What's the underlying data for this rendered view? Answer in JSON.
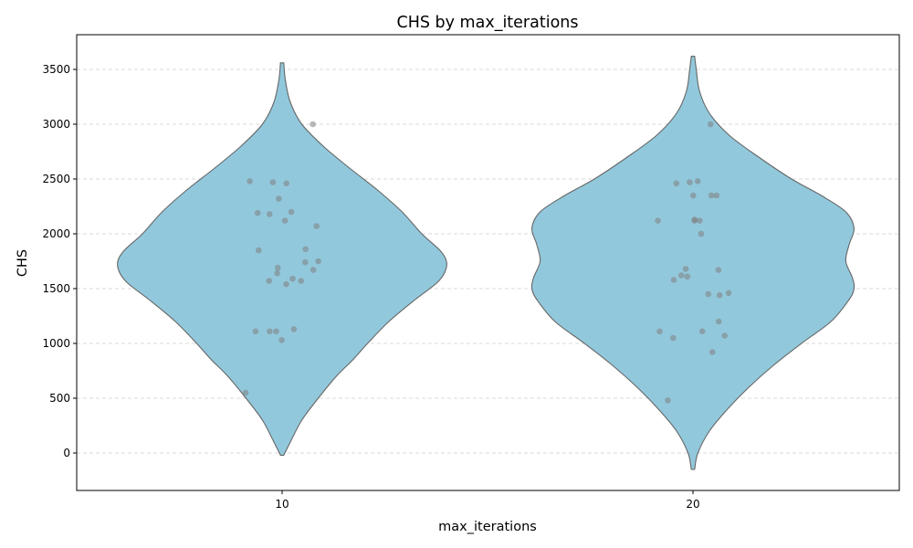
{
  "chart_data": {
    "type": "violin",
    "title": "CHS by max_iterations",
    "xlabel": "max_iterations",
    "ylabel": "CHS",
    "categories": [
      "10",
      "20"
    ],
    "ylim": [
      -340,
      3820
    ],
    "yticks": [
      0,
      500,
      1000,
      1500,
      2000,
      2500,
      3000,
      3500
    ],
    "grid": "y-dashed",
    "colors": {
      "violin_fill": "#92c8dc",
      "violin_edge": "#666666",
      "point": "#808080",
      "grid": "#cccccc"
    },
    "series": [
      {
        "category": "10",
        "density_profile": [
          [
            -20,
            0.01
          ],
          [
            100,
            0.05
          ],
          [
            300,
            0.12
          ],
          [
            500,
            0.22
          ],
          [
            700,
            0.33
          ],
          [
            850,
            0.43
          ],
          [
            1000,
            0.52
          ],
          [
            1200,
            0.65
          ],
          [
            1400,
            0.81
          ],
          [
            1550,
            0.94
          ],
          [
            1650,
            0.99
          ],
          [
            1750,
            1.0
          ],
          [
            1850,
            0.96
          ],
          [
            2000,
            0.85
          ],
          [
            2200,
            0.73
          ],
          [
            2400,
            0.58
          ],
          [
            2600,
            0.41
          ],
          [
            2800,
            0.25
          ],
          [
            3000,
            0.12
          ],
          [
            3200,
            0.05
          ],
          [
            3400,
            0.02
          ],
          [
            3560,
            0.01
          ]
        ],
        "points": [
          3000,
          2480,
          2460,
          2470,
          2320,
          2200,
          2190,
          2180,
          2120,
          2070,
          1860,
          1850,
          1750,
          1740,
          1690,
          1670,
          1640,
          1590,
          1570,
          1570,
          1540,
          1130,
          1110,
          1110,
          1110,
          1030,
          550
        ]
      },
      {
        "category": "20",
        "density_profile": [
          [
            -150,
            0.01
          ],
          [
            0,
            0.03
          ],
          [
            200,
            0.1
          ],
          [
            400,
            0.21
          ],
          [
            600,
            0.34
          ],
          [
            800,
            0.49
          ],
          [
            1000,
            0.66
          ],
          [
            1200,
            0.84
          ],
          [
            1400,
            0.95
          ],
          [
            1500,
            0.98
          ],
          [
            1600,
            0.97
          ],
          [
            1750,
            0.93
          ],
          [
            1900,
            0.95
          ],
          [
            2050,
            0.98
          ],
          [
            2200,
            0.93
          ],
          [
            2350,
            0.78
          ],
          [
            2500,
            0.6
          ],
          [
            2700,
            0.4
          ],
          [
            2900,
            0.22
          ],
          [
            3100,
            0.1
          ],
          [
            3300,
            0.04
          ],
          [
            3500,
            0.02
          ],
          [
            3620,
            0.01
          ]
        ],
        "points": [
          3000,
          2480,
          2470,
          2460,
          2350,
          2350,
          2350,
          2130,
          2120,
          2120,
          2120,
          2000,
          1680,
          1670,
          1620,
          1610,
          1580,
          1460,
          1450,
          1440,
          1200,
          1110,
          1110,
          1070,
          1050,
          920,
          480
        ]
      }
    ]
  }
}
